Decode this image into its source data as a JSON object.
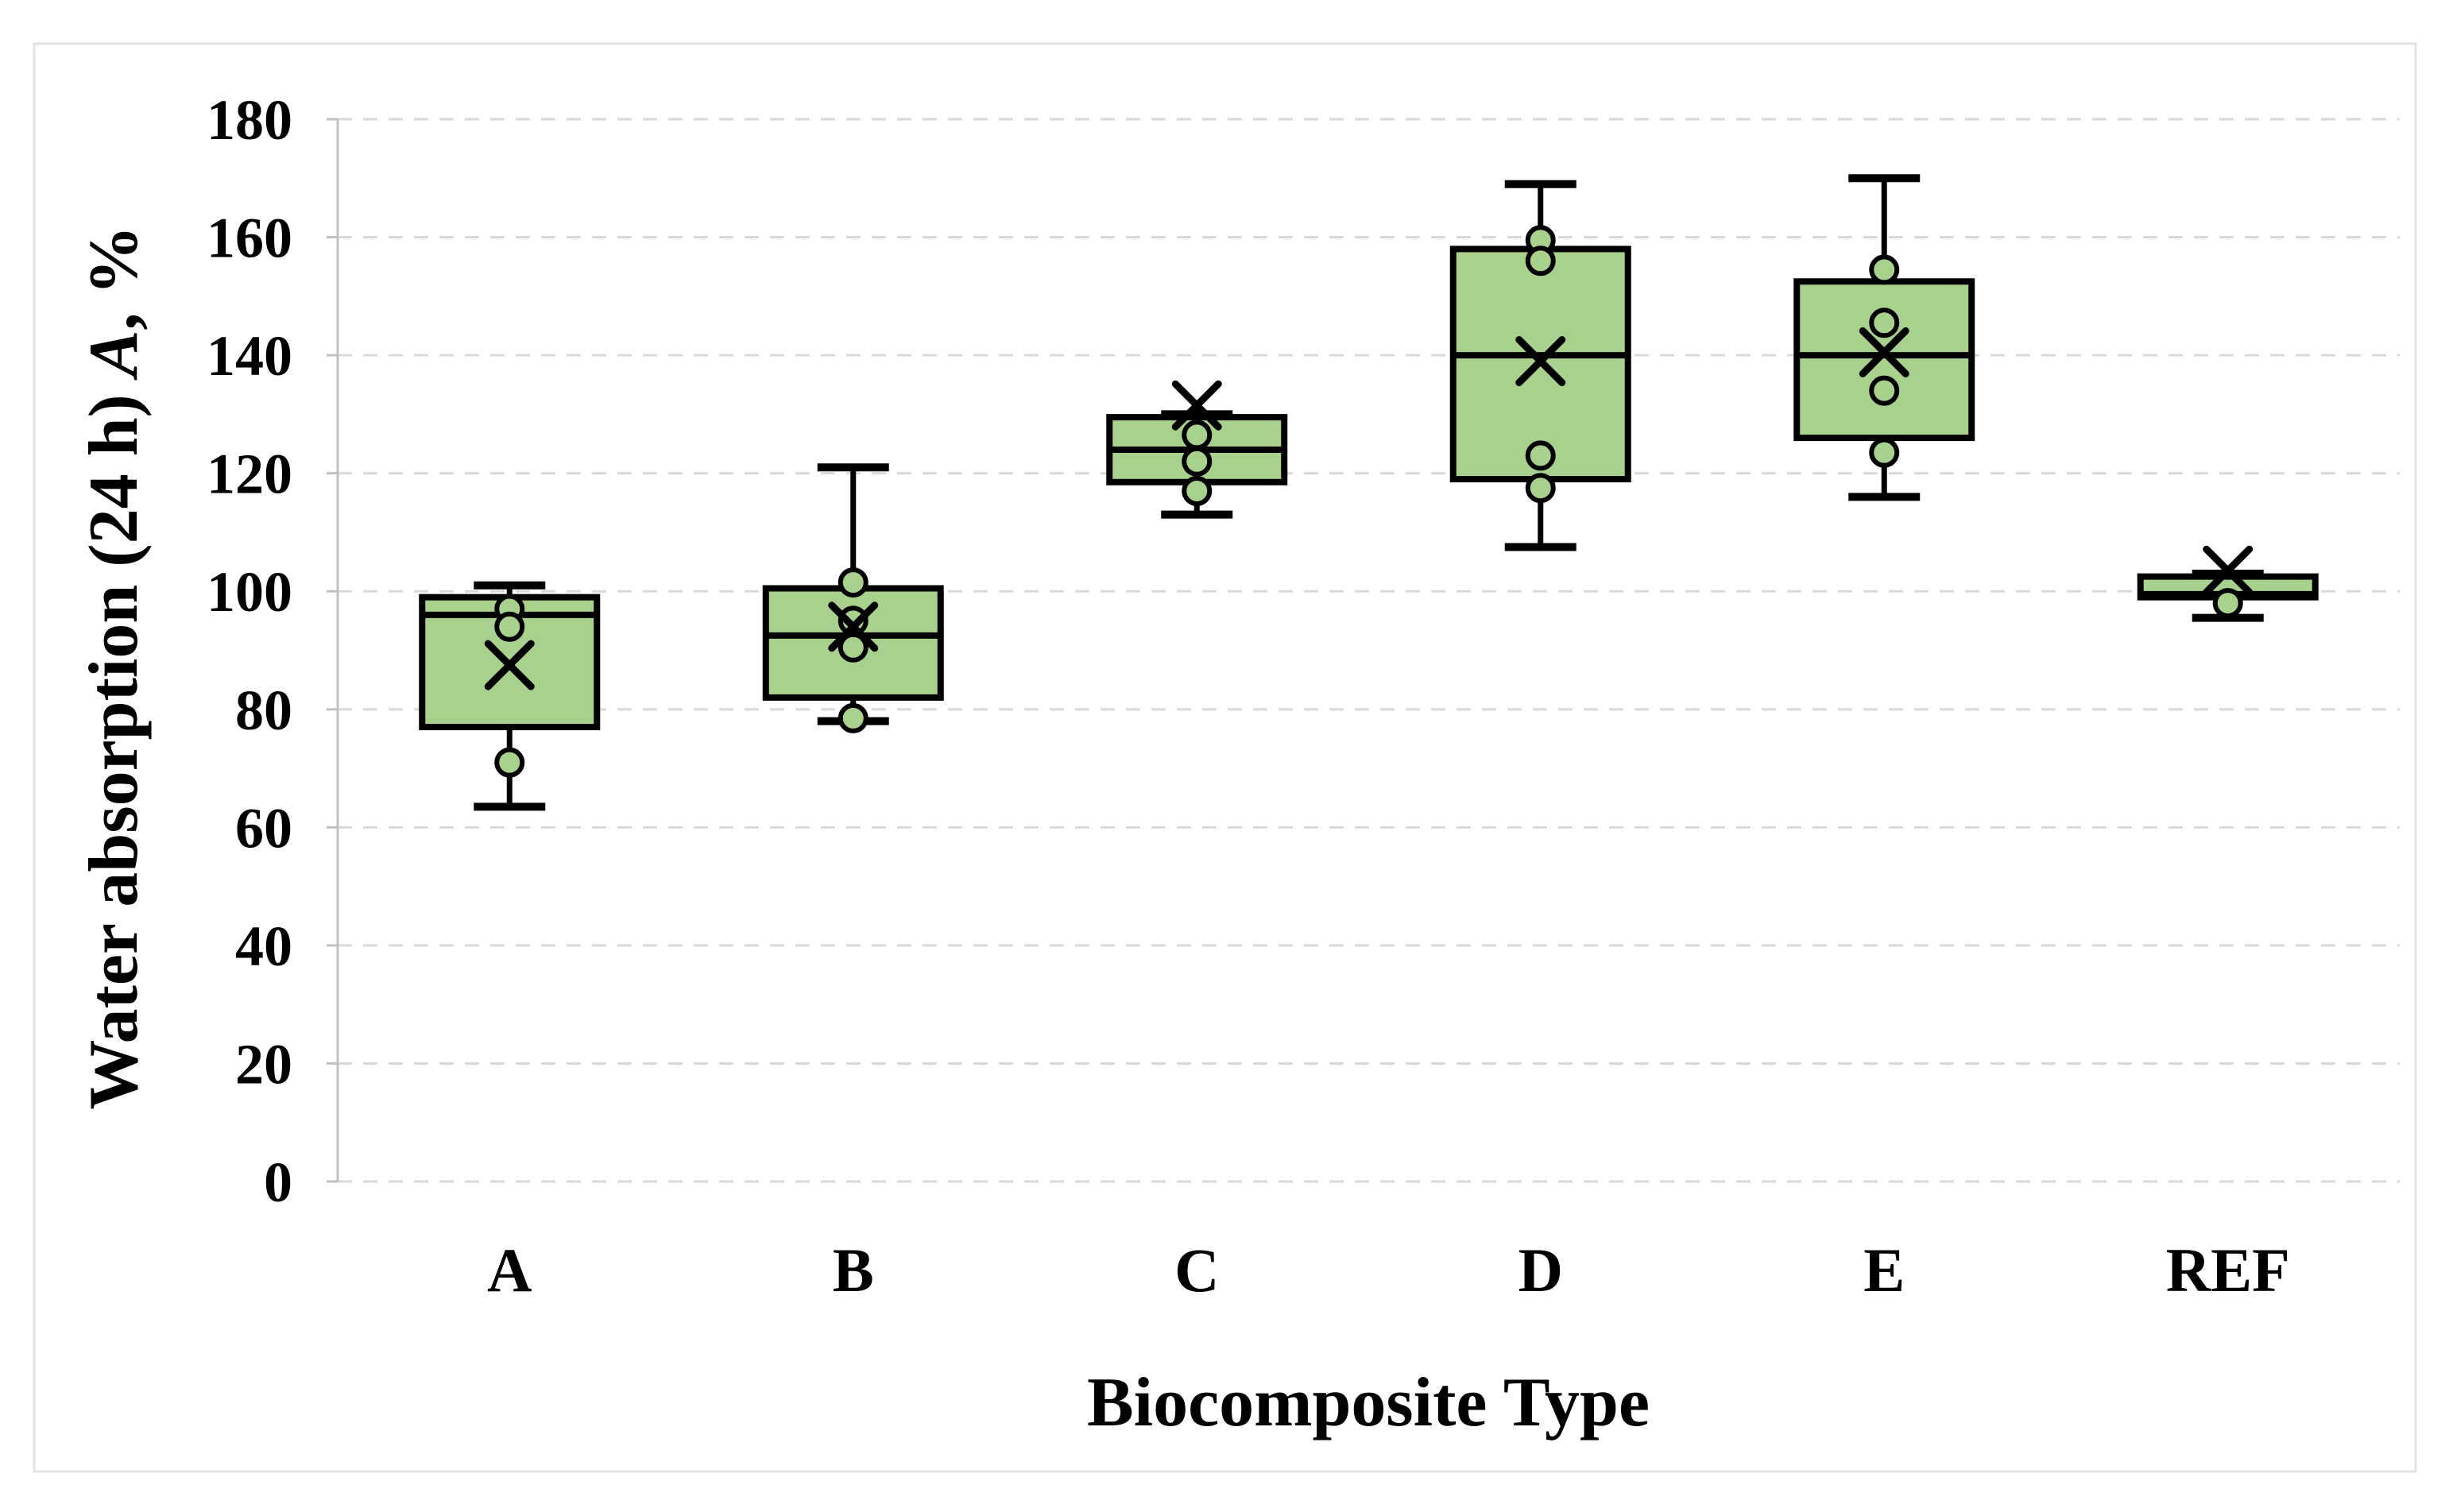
{
  "figure": {
    "background": "#ffffff",
    "border_color": "#e3e3e3"
  },
  "chart_data": {
    "type": "box",
    "title": "",
    "xlabel": "Biocomposite Type",
    "ylabel": "Water absorption (24 h) A, %",
    "ylabel_parts": {
      "prefix": "Water absorption (24 h) ",
      "italic": "A",
      "suffix": ", %"
    },
    "ylim": [
      0,
      180
    ],
    "ytick_step": 20,
    "yticks": [
      0,
      20,
      40,
      60,
      80,
      100,
      120,
      140,
      160,
      180
    ],
    "grid": true,
    "legend": "none",
    "categories": [
      "A",
      "B",
      "C",
      "D",
      "E",
      "REF"
    ],
    "series": [
      {
        "category": "A",
        "min": 63.5,
        "q1": 77,
        "median": 96,
        "q3": 99,
        "max": 101,
        "mean": 87.5,
        "points": [
          97,
          94,
          71
        ]
      },
      {
        "category": "B",
        "min": 78,
        "q1": 82,
        "median": 92.5,
        "q3": 100.5,
        "max": 121,
        "mean": 94,
        "points": [
          101.5,
          95,
          90.5,
          78.5
        ]
      },
      {
        "category": "C",
        "min": 113,
        "q1": 118.5,
        "median": 124,
        "q3": 129.5,
        "max": 130,
        "mean": 131.5,
        "points": [
          126.5,
          122,
          117
        ]
      },
      {
        "category": "D",
        "min": 107.5,
        "q1": 119,
        "median": 140,
        "q3": 158,
        "max": 169,
        "mean": 139,
        "points": [
          159.5,
          156,
          123,
          117.5
        ]
      },
      {
        "category": "E",
        "min": 116,
        "q1": 126,
        "median": 140,
        "q3": 152.5,
        "max": 170,
        "mean": 140.5,
        "points": [
          154.5,
          145.5,
          134,
          123.5
        ]
      },
      {
        "category": "REF",
        "min": 95.5,
        "q1": 99,
        "median": 99.5,
        "q3": 102.5,
        "max": 103,
        "mean": 103.5,
        "points": [
          98
        ]
      }
    ],
    "box_fill": "#a9d18e",
    "box_stroke": "#000000",
    "gridline_color": "#d9d9d9",
    "axis_line_color": "#c0c0c0"
  }
}
